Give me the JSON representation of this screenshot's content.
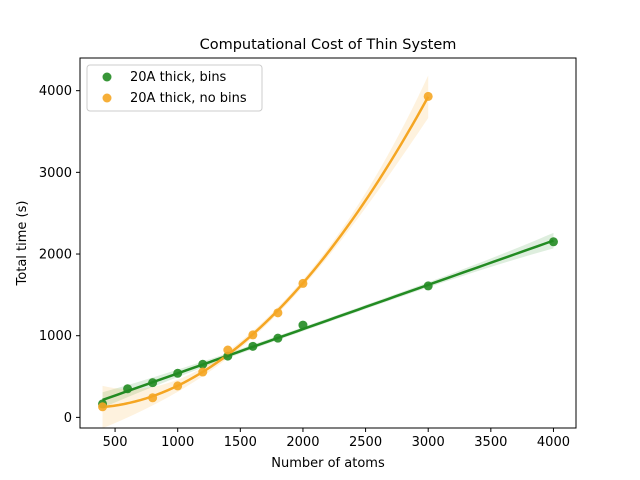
{
  "chart_data": {
    "type": "scatter",
    "title": "Computational Cost of Thin System",
    "xlabel": "Number of atoms",
    "ylabel": "Total time (s)",
    "xlim": [
      220,
      4180
    ],
    "ylim": [
      -130,
      4400
    ],
    "xticks": [
      500,
      1000,
      1500,
      2000,
      2500,
      3000,
      3500,
      4000
    ],
    "yticks": [
      0,
      1000,
      2000,
      3000,
      4000
    ],
    "grid": false,
    "legend_position": "top-left",
    "series": [
      {
        "name": "20A thick, bins",
        "color": "#228b22",
        "fit": "linear",
        "x": [
          400,
          600,
          800,
          1000,
          1200,
          1400,
          1600,
          1800,
          2000,
          3000,
          4000
        ],
        "y": [
          165,
          350,
          425,
          540,
          650,
          750,
          870,
          970,
          1130,
          1610,
          2150
        ]
      },
      {
        "name": "20A thick, no bins",
        "color": "#f5a623",
        "fit": "quadratic",
        "x": [
          400,
          800,
          1000,
          1200,
          1400,
          1600,
          1800,
          2000,
          3000
        ],
        "y": [
          130,
          240,
          385,
          555,
          825,
          1010,
          1280,
          1640,
          3930
        ]
      }
    ]
  }
}
